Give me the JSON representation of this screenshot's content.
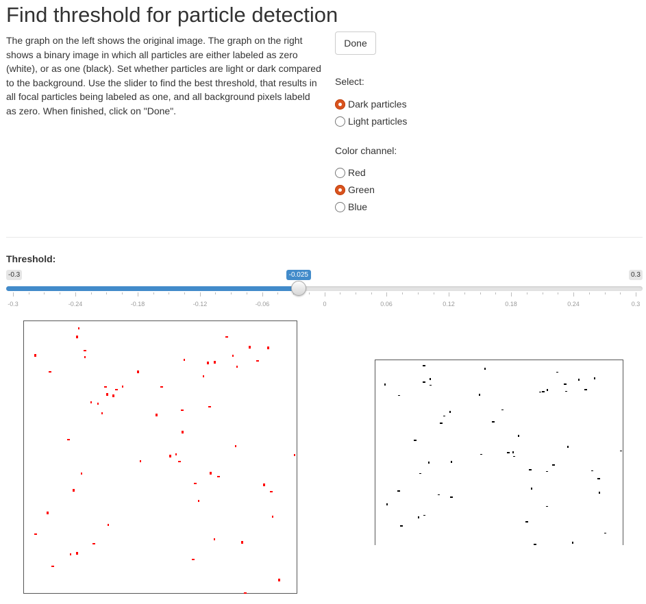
{
  "page": {
    "title": "Find threshold for particle detection",
    "description": "The graph on the left shows the original image. The graph on the right shows a binary image in which all particles are either labeled as zero (white), or as one (black). Set whether particles are light or dark compared to the background. Use the slider to find the best threshold, that results in all focal particles being labeled as one, and all background pixels labeld as zero. When finished, click on \"Done\"."
  },
  "done_button": {
    "label": "Done"
  },
  "select_group": {
    "label": "Select:",
    "options": [
      {
        "label": "Dark particles",
        "selected": true
      },
      {
        "label": "Light particles",
        "selected": false
      }
    ]
  },
  "channel_group": {
    "label": "Color channel:",
    "options": [
      {
        "label": "Red",
        "selected": false
      },
      {
        "label": "Green",
        "selected": true
      },
      {
        "label": "Blue",
        "selected": false
      }
    ]
  },
  "threshold_slider": {
    "label": "Threshold:",
    "min": -0.3,
    "max": 0.3,
    "value": -0.025,
    "min_label": "-0.3",
    "max_label": "0.3",
    "value_label": "-0.025",
    "ticks": [
      "-0.3",
      "-0.24",
      "-0.18",
      "-0.12",
      "-0.06",
      "0",
      "0.06",
      "0.12",
      "0.18",
      "0.24",
      "0.3"
    ],
    "fill_color": "#428bca"
  },
  "colors": {
    "radio_selected": "#d9531e",
    "particle_original": "#ff0000",
    "particle_binary": "#000000"
  }
}
